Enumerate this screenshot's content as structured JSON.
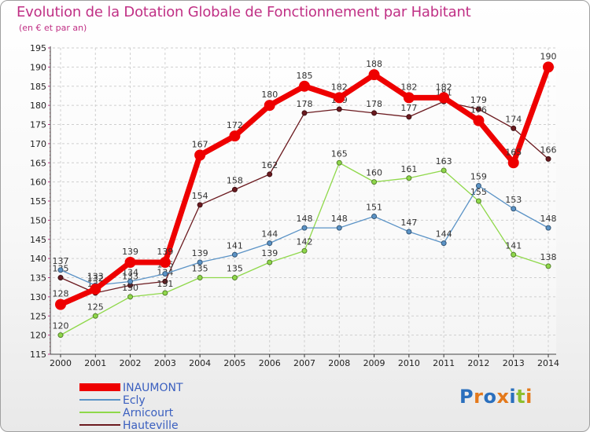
{
  "chart_data": {
    "type": "line",
    "title": "Evolution de la Dotation Globale de Fonctionnement par Habitant",
    "subtitle": "(en € et par an)",
    "x": [
      "2000",
      "2001",
      "2002",
      "2003",
      "2004",
      "2005",
      "2006",
      "2007",
      "2008",
      "2009",
      "2010",
      "2011",
      "2012",
      "2013",
      "2014"
    ],
    "ylim": [
      115,
      195
    ],
    "yticks": [
      115,
      120,
      125,
      130,
      135,
      140,
      145,
      150,
      155,
      160,
      165,
      170,
      175,
      180,
      185,
      190,
      195
    ],
    "grid": true,
    "legend_position": "bottom-left",
    "series": [
      {
        "name": "Hauteville",
        "color": "#6b1a1f",
        "values": [
          135,
          131,
          133,
          134,
          154,
          158,
          162,
          178,
          179,
          178,
          177,
          181,
          179,
          174,
          166
        ]
      },
      {
        "name": "Arnicourt",
        "color": "#8fd84a",
        "values": [
          120,
          125,
          130,
          131,
          135,
          135,
          139,
          142,
          165,
          160,
          161,
          163,
          155,
          141,
          138
        ]
      },
      {
        "name": "Ecly",
        "color": "#5b93c6",
        "values": [
          137,
          133,
          134,
          136,
          139,
          141,
          144,
          148,
          148,
          151,
          147,
          144,
          159,
          153,
          148
        ]
      },
      {
        "name": "INAUMONT",
        "color": "#ee0000",
        "values": [
          128,
          132,
          139,
          139,
          167,
          172,
          180,
          185,
          182,
          188,
          182,
          182,
          176,
          165,
          190
        ]
      }
    ],
    "legend_order": [
      "INAUMONT",
      "Ecly",
      "Arnicourt",
      "Hauteville"
    ]
  },
  "logo": {
    "text": "Proxiti",
    "colors": [
      "#2a6fbd",
      "#e4791b",
      "#2a6fbd",
      "#e4791b",
      "#2a6fbd",
      "#8dbf2e",
      "#e4791b"
    ]
  }
}
